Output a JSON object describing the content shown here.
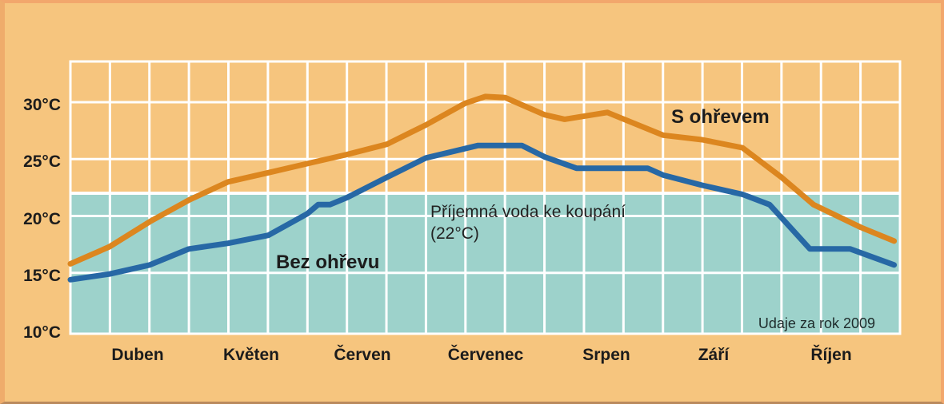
{
  "chart_data": {
    "type": "line",
    "title": "",
    "x_axis": {
      "categories": [
        "Duben",
        "Květen",
        "Červen",
        "Červenec",
        "Srpen",
        "Září",
        "Říjen"
      ],
      "minor_divisions_per_month": 3
    },
    "y_axis": {
      "tick_labels": [
        "30°C",
        "25°C",
        "20°C",
        "15°C",
        "10°C"
      ],
      "tick_values": [
        30,
        25,
        20,
        15,
        10
      ],
      "unit": "°C",
      "range": [
        10,
        33.5
      ]
    },
    "series": [
      {
        "name": "S ohřevem",
        "color": "#DC861F",
        "points": [
          [
            0,
            15.8
          ],
          [
            0.33,
            17.3
          ],
          [
            0.67,
            19.5
          ],
          [
            1,
            21.4
          ],
          [
            1.33,
            23
          ],
          [
            1.67,
            23.8
          ],
          [
            2,
            24.6
          ],
          [
            2.33,
            25.4
          ],
          [
            2.67,
            26.3
          ],
          [
            3,
            28
          ],
          [
            3.33,
            29.9
          ],
          [
            3.5,
            30.5
          ],
          [
            3.67,
            30.4
          ],
          [
            4,
            28.9
          ],
          [
            4.17,
            28.5
          ],
          [
            4.53,
            29.1
          ],
          [
            5,
            27.1
          ],
          [
            5.33,
            26.7
          ],
          [
            5.67,
            26
          ],
          [
            6,
            23.4
          ],
          [
            6.27,
            21
          ],
          [
            6.67,
            19
          ],
          [
            6.95,
            17.8
          ]
        ]
      },
      {
        "name": "Bez ohřevu",
        "color": "#2768A5",
        "points": [
          [
            0,
            14.4
          ],
          [
            0.33,
            14.9
          ],
          [
            0.67,
            15.7
          ],
          [
            1,
            17.1
          ],
          [
            1.33,
            17.6
          ],
          [
            1.67,
            18.3
          ],
          [
            2,
            20.2
          ],
          [
            2.09,
            21
          ],
          [
            2.19,
            21
          ],
          [
            2.33,
            21.6
          ],
          [
            2.67,
            23.4
          ],
          [
            3,
            25.1
          ],
          [
            3.44,
            26.2
          ],
          [
            3.81,
            26.2
          ],
          [
            4,
            25.2
          ],
          [
            4.27,
            24.2
          ],
          [
            4.87,
            24.2
          ],
          [
            5,
            23.6
          ],
          [
            5.33,
            22.7
          ],
          [
            5.67,
            21.9
          ],
          [
            5.9,
            21
          ],
          [
            6.24,
            17.1
          ],
          [
            6.58,
            17.1
          ],
          [
            6.95,
            15.7
          ]
        ]
      }
    ],
    "threshold_band": {
      "value": 22,
      "band_color": "#9DD2CB",
      "label_line1": "Příjemná voda ke koupání",
      "label_line2": "(22°C)"
    },
    "footnote": "Udaje za rok 2009",
    "grid": true,
    "legend_position": "inline-annotations"
  },
  "colors": {
    "background": "#F6C57E",
    "grid": "#FFFFFF",
    "band": "#9DD2CB",
    "heated_line": "#DC861F",
    "unheated_line": "#2768A5",
    "text": "#1C1C1C"
  }
}
